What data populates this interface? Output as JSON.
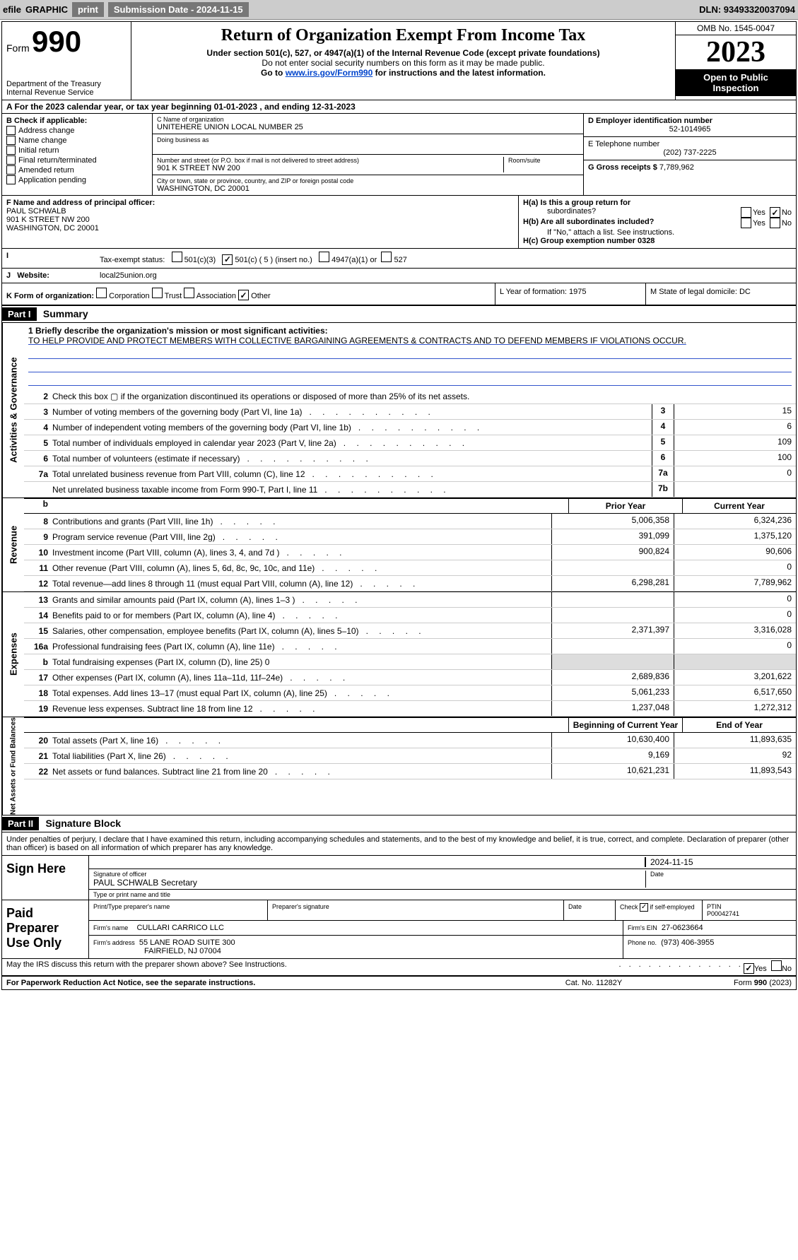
{
  "toolbar": {
    "efile": "efile",
    "graphic": "GRAPHIC",
    "print": "print",
    "sub_label": "Submission Date - 2024-11-15",
    "dln": "DLN: 93493320037094"
  },
  "header": {
    "form_word": "Form",
    "form_num": "990",
    "dept": "Department of the Treasury",
    "irs": "Internal Revenue Service",
    "title": "Return of Organization Exempt From Income Tax",
    "sub1": "Under section 501(c), 527, or 4947(a)(1) of the Internal Revenue Code (except private foundations)",
    "sub2": "Do not enter social security numbers on this form as it may be made public.",
    "sub3_pre": "Go to ",
    "sub3_link": "www.irs.gov/Form990",
    "sub3_post": " for instructions and the latest information.",
    "omb": "OMB No. 1545-0047",
    "year": "2023",
    "inspect1": "Open to Public",
    "inspect2": "Inspection"
  },
  "rowA": "A For the 2023 calendar year, or tax year beginning 01-01-2023     , and ending 12-31-2023",
  "boxB": {
    "lbl": "B Check if applicable:",
    "opts": [
      "Address change",
      "Name change",
      "Initial return",
      "Final return/terminated",
      "Amended return",
      "Application pending"
    ]
  },
  "boxC": {
    "lbl_name": "C Name of organization",
    "name": "UNITEHERE UNION LOCAL NUMBER 25",
    "dba_lbl": "Doing business as",
    "addr_lbl": "Number and street (or P.O. box if mail is not delivered to street address)",
    "room_lbl": "Room/suite",
    "addr": "901 K STREET NW 200",
    "city_lbl": "City or town, state or province, country, and ZIP or foreign postal code",
    "city": "WASHINGTON, DC  20001"
  },
  "boxD": {
    "lbl": "D Employer identification number",
    "val": "52-1014965"
  },
  "boxE": {
    "lbl": "E Telephone number",
    "val": "(202) 737-2225"
  },
  "boxG": {
    "lbl": "G Gross receipts $ ",
    "val": "7,789,962"
  },
  "boxF": {
    "lbl": "F  Name and address of principal officer:",
    "l1": "PAUL SCHWALB",
    "l2": "901 K STREET NW 200",
    "l3": "WASHINGTON, DC  20001"
  },
  "boxH": {
    "a": "H(a)  Is this a group return for",
    "a2": "subordinates?",
    "b": "H(b)  Are all subordinates included?",
    "b2": "If \"No,\" attach a list. See instructions.",
    "c": "H(c)  Group exemption number    0328",
    "yes": "Yes",
    "no": "No"
  },
  "rowI": {
    "lbl": "Tax-exempt status:",
    "o1": "501(c)(3)",
    "o2": "501(c) ( 5 ) (insert no.)",
    "o3": "4947(a)(1) or",
    "o4": "527"
  },
  "rowJ": {
    "lbl": "Website:",
    "val": "local25union.org"
  },
  "rowK": {
    "lbl": "K Form of organization:",
    "o1": "Corporation",
    "o2": "Trust",
    "o3": "Association",
    "o4": "Other"
  },
  "rowL": "L Year of formation: 1975",
  "rowM": "M State of legal domicile: DC",
  "part1": {
    "hdr": "Part I",
    "title": "Summary"
  },
  "vtabs": {
    "gov": "Activities & Governance",
    "rev": "Revenue",
    "exp": "Expenses",
    "net": "Net Assets or Fund Balances"
  },
  "mission": {
    "lbl": "1   Briefly describe the organization's mission or most significant activities:",
    "txt": "TO HELP PROVIDE AND PROTECT MEMBERS WITH COLLECTIVE BARGAINING AGREEMENTS & CONTRACTS AND TO DEFEND MEMBERS IF VIOLATIONS OCCUR."
  },
  "gov_lines": [
    {
      "n": "2",
      "t": "Check this box ▢ if the organization discontinued its operations or disposed of more than 25% of its net assets."
    },
    {
      "n": "3",
      "t": "Number of voting members of the governing body (Part VI, line 1a)",
      "box": "3",
      "v": "15"
    },
    {
      "n": "4",
      "t": "Number of independent voting members of the governing body (Part VI, line 1b)",
      "box": "4",
      "v": "6"
    },
    {
      "n": "5",
      "t": "Total number of individuals employed in calendar year 2023 (Part V, line 2a)",
      "box": "5",
      "v": "109"
    },
    {
      "n": "6",
      "t": "Total number of volunteers (estimate if necessary)",
      "box": "6",
      "v": "100"
    },
    {
      "n": "7a",
      "t": "Total unrelated business revenue from Part VIII, column (C), line 12",
      "box": "7a",
      "v": "0"
    },
    {
      "n": "",
      "t": "Net unrelated business taxable income from Form 990-T, Part I, line 11",
      "box": "7b",
      "v": ""
    }
  ],
  "col_hdr": {
    "b": "b",
    "prior": "Prior Year",
    "curr": "Current Year"
  },
  "rev_lines": [
    {
      "n": "8",
      "t": "Contributions and grants (Part VIII, line 1h)",
      "p": "5,006,358",
      "c": "6,324,236"
    },
    {
      "n": "9",
      "t": "Program service revenue (Part VIII, line 2g)",
      "p": "391,099",
      "c": "1,375,120"
    },
    {
      "n": "10",
      "t": "Investment income (Part VIII, column (A), lines 3, 4, and 7d )",
      "p": "900,824",
      "c": "90,606"
    },
    {
      "n": "11",
      "t": "Other revenue (Part VIII, column (A), lines 5, 6d, 8c, 9c, 10c, and 11e)",
      "p": "",
      "c": "0"
    },
    {
      "n": "12",
      "t": "Total revenue—add lines 8 through 11 (must equal Part VIII, column (A), line 12)",
      "p": "6,298,281",
      "c": "7,789,962"
    }
  ],
  "exp_lines": [
    {
      "n": "13",
      "t": "Grants and similar amounts paid (Part IX, column (A), lines 1–3 )",
      "p": "",
      "c": "0"
    },
    {
      "n": "14",
      "t": "Benefits paid to or for members (Part IX, column (A), line 4)",
      "p": "",
      "c": "0"
    },
    {
      "n": "15",
      "t": "Salaries, other compensation, employee benefits (Part IX, column (A), lines 5–10)",
      "p": "2,371,397",
      "c": "3,316,028"
    },
    {
      "n": "16a",
      "t": "Professional fundraising fees (Part IX, column (A), line 11e)",
      "p": "",
      "c": "0"
    },
    {
      "n": "b",
      "t": "Total fundraising expenses (Part IX, column (D), line 25) 0",
      "gray": true
    },
    {
      "n": "17",
      "t": "Other expenses (Part IX, column (A), lines 11a–11d, 11f–24e)",
      "p": "2,689,836",
      "c": "3,201,622"
    },
    {
      "n": "18",
      "t": "Total expenses. Add lines 13–17 (must equal Part IX, column (A), line 25)",
      "p": "5,061,233",
      "c": "6,517,650"
    },
    {
      "n": "19",
      "t": "Revenue less expenses. Subtract line 18 from line 12",
      "p": "1,237,048",
      "c": "1,272,312"
    }
  ],
  "net_hdr": {
    "b": "Beginning of Current Year",
    "e": "End of Year"
  },
  "net_lines": [
    {
      "n": "20",
      "t": "Total assets (Part X, line 16)",
      "p": "10,630,400",
      "c": "11,893,635"
    },
    {
      "n": "21",
      "t": "Total liabilities (Part X, line 26)",
      "p": "9,169",
      "c": "92"
    },
    {
      "n": "22",
      "t": "Net assets or fund balances. Subtract line 21 from line 20",
      "p": "10,621,231",
      "c": "11,893,543"
    }
  ],
  "part2": {
    "hdr": "Part II",
    "title": "Signature Block"
  },
  "penalties": "Under penalties of perjury, I declare that I have examined this return, including accompanying schedules and statements, and to the best of my knowledge and belief, it is true, correct, and complete. Declaration of preparer (other than officer) is based on all information of which preparer has any knowledge.",
  "sign": {
    "lbl": "Sign Here",
    "date": "2024-11-15",
    "sig_lbl": "Signature of officer",
    "name": "PAUL SCHWALB  Secretary",
    "type_lbl": "Type or print name and title",
    "date_lbl": "Date"
  },
  "prep": {
    "lbl1": "Paid",
    "lbl2": "Preparer",
    "lbl3": "Use Only",
    "h1": "Print/Type preparer's name",
    "h2": "Preparer's signature",
    "h3": "Date",
    "h4_pre": "Check",
    "h4_post": "if self-employed",
    "h5": "PTIN",
    "ptin": "P00042741",
    "firm_lbl": "Firm's name",
    "firm": "CULLARI CARRICO LLC",
    "ein_lbl": "Firm's EIN",
    "ein": "27-0623664",
    "addr_lbl": "Firm's address",
    "addr1": "55 LANE ROAD SUITE 300",
    "addr2": "FAIRFIELD, NJ  07004",
    "phone_lbl": "Phone no.",
    "phone": "(973) 406-3955"
  },
  "discuss": "May the IRS discuss this return with the preparer shown above? See Instructions.",
  "footer": {
    "l": "For Paperwork Reduction Act Notice, see the separate instructions.",
    "m": "Cat. No. 11282Y",
    "r": "Form 990 (2023)"
  }
}
